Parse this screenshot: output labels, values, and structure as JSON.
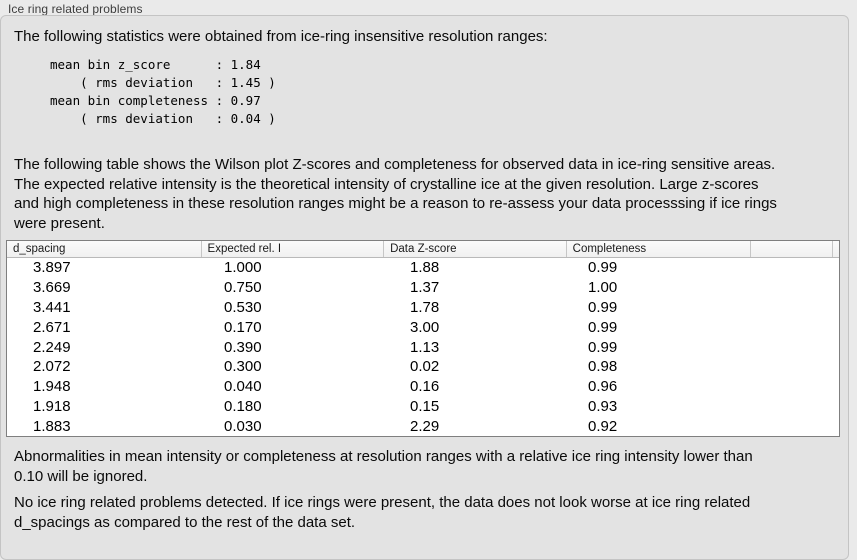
{
  "section": {
    "title": "Ice ring related problems"
  },
  "stats": {
    "intro": "The following statistics were obtained from ice-ring insensitive resolution ranges:",
    "block": "mean bin z_score      : 1.84\n    ( rms deviation   : 1.45 )\nmean bin completeness : 0.97\n    ( rms deviation   : 0.04 )"
  },
  "table_intro": "The following table shows the Wilson plot Z-scores and completeness for observed data in ice-ring sensitive areas.\nThe expected relative intensity is the theoretical intensity of crystalline ice at the given resolution. Large z-scores\nand high completeness in these resolution ranges might be a reason to re-assess your data processsing if ice rings\nwere present.",
  "table": {
    "columns": [
      "d_spacing",
      "Expected rel. I",
      "Data Z-score",
      "Completeness",
      ""
    ],
    "rows": [
      [
        "3.897",
        "1.000",
        "1.88",
        "0.99"
      ],
      [
        "3.669",
        "0.750",
        "1.37",
        "1.00"
      ],
      [
        "3.441",
        "0.530",
        "1.78",
        "0.99"
      ],
      [
        "2.671",
        "0.170",
        "3.00",
        "0.99"
      ],
      [
        "2.249",
        "0.390",
        "1.13",
        "0.99"
      ],
      [
        "2.072",
        "0.300",
        "0.02",
        "0.98"
      ],
      [
        "1.948",
        "0.040",
        "0.16",
        "0.96"
      ],
      [
        "1.918",
        "0.180",
        "0.15",
        "0.93"
      ],
      [
        "1.883",
        "0.030",
        "2.29",
        "0.92"
      ]
    ]
  },
  "notes": {
    "ignore_rule": "Abnormalities in mean intensity or completeness at resolution ranges with a relative ice ring intensity lower than\n0.10 will be ignored.",
    "conclusion": "No ice ring related problems detected. If ice rings were present, the data does not look worse at ice ring related\nd_spacings as compared to the rest of the data set."
  },
  "colors": {
    "panel_bg": "#e3e3e3",
    "outer_bg": "#eaeaea",
    "table_border": "#7f7f7f"
  }
}
